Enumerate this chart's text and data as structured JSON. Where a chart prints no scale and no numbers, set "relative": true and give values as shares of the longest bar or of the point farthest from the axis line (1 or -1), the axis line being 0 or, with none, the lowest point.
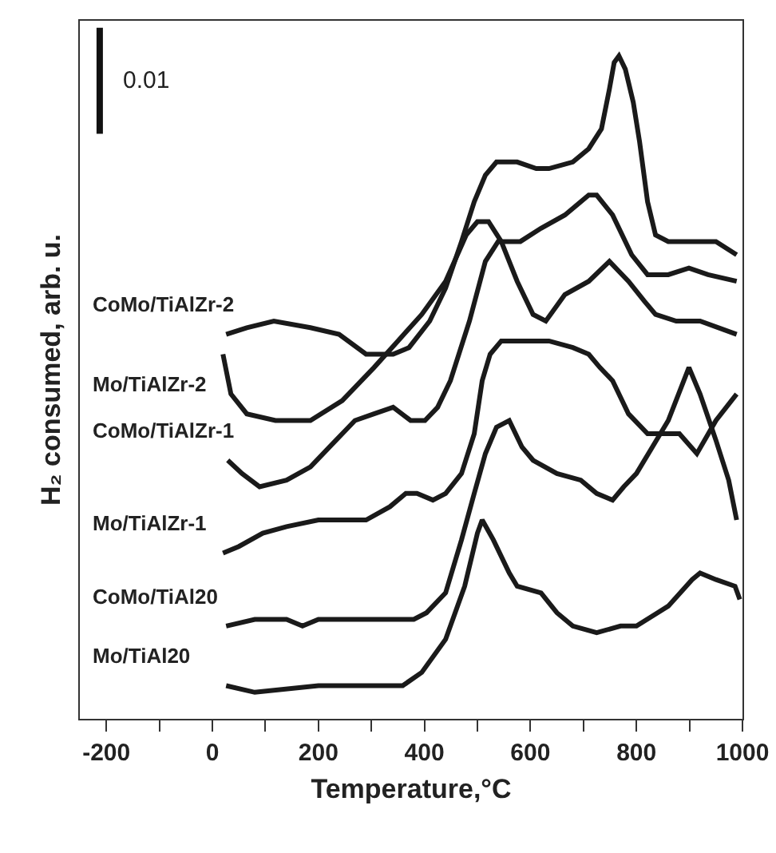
{
  "chart_data": {
    "type": "line",
    "relative": true,
    "xlabel": "Temperature,°C",
    "ylabel": "H₂ consumed, arb. u.",
    "xlim": [
      -250,
      1000
    ],
    "xticks": [
      -200,
      {
        "value": -100,
        "label": null
      },
      0,
      {
        "value": 100,
        "label": null
      },
      200,
      {
        "value": 300,
        "label": null
      },
      400,
      {
        "value": 500,
        "label": null
      },
      600,
      {
        "value": 700,
        "label": null
      },
      800,
      {
        "value": 900,
        "label": null
      },
      1000
    ],
    "annotations": [
      "0.01"
    ],
    "grid": false,
    "legend": false,
    "marker": "none",
    "line_style": "solid",
    "series": [
      {
        "name": "Mo/TiAl20",
        "color": "#1a1a1a",
        "x": [
          26,
          80,
          200,
          320,
          359,
          395,
          440,
          476,
          500,
          509,
          530,
          560,
          575,
          620,
          650,
          680,
          725,
          770,
          800,
          860,
          905,
          920,
          950,
          986,
          995
        ],
        "values": [
          0.05,
          0.04,
          0.05,
          0.05,
          0.05,
          0.07,
          0.12,
          0.2,
          0.28,
          0.3,
          0.27,
          0.22,
          0.2,
          0.19,
          0.16,
          0.14,
          0.13,
          0.14,
          0.14,
          0.17,
          0.21,
          0.22,
          0.21,
          0.2,
          0.18
        ]
      },
      {
        "name": "CoMo/TiAl20",
        "color": "#1a1a1a",
        "x": [
          26,
          80,
          140,
          170,
          200,
          290,
          380,
          404,
          440,
          470,
          494,
          515,
          536,
          560,
          584,
          605,
          650,
          695,
          725,
          755,
          776,
          800,
          830,
          860,
          899,
          920,
          950,
          974,
          989
        ],
        "values": [
          0.14,
          0.15,
          0.15,
          0.14,
          0.15,
          0.15,
          0.15,
          0.16,
          0.19,
          0.27,
          0.34,
          0.4,
          0.44,
          0.45,
          0.41,
          0.39,
          0.37,
          0.36,
          0.34,
          0.33,
          0.35,
          0.37,
          0.41,
          0.45,
          0.53,
          0.49,
          0.42,
          0.36,
          0.3
        ]
      },
      {
        "name": "Mo/TiAlZr-1",
        "color": "#1a1a1a",
        "x": [
          20,
          50,
          95,
          140,
          200,
          290,
          335,
          365,
          386,
          416,
          440,
          470,
          494,
          509,
          524,
          545,
          590,
          635,
          680,
          710,
          731,
          755,
          785,
          821,
          881,
          914,
          950,
          989
        ],
        "values": [
          0.25,
          0.26,
          0.28,
          0.29,
          0.3,
          0.3,
          0.32,
          0.34,
          0.34,
          0.33,
          0.34,
          0.37,
          0.43,
          0.51,
          0.55,
          0.57,
          0.57,
          0.57,
          0.56,
          0.55,
          0.53,
          0.51,
          0.46,
          0.43,
          0.43,
          0.4,
          0.45,
          0.49
        ]
      },
      {
        "name": "CoMo/TiAlZr-1",
        "color": "#1a1a1a",
        "x": [
          29,
          56,
          89,
          140,
          185,
          221,
          269,
          305,
          341,
          374,
          401,
          425,
          449,
          485,
          515,
          539,
          581,
          620,
          665,
          710,
          725,
          755,
          791,
          821,
          860,
          899,
          935,
          989
        ],
        "values": [
          0.39,
          0.37,
          0.35,
          0.36,
          0.38,
          0.41,
          0.45,
          0.46,
          0.47,
          0.45,
          0.45,
          0.47,
          0.51,
          0.6,
          0.69,
          0.72,
          0.72,
          0.74,
          0.76,
          0.79,
          0.79,
          0.76,
          0.7,
          0.67,
          0.67,
          0.68,
          0.67,
          0.66
        ]
      },
      {
        "name": "Mo/TiAlZr-2",
        "color": "#1a1a1a",
        "x": [
          20,
          35,
          65,
          119,
          185,
          245,
          305,
          350,
          395,
          440,
          479,
          500,
          521,
          545,
          575,
          605,
          629,
          665,
          710,
          749,
          785,
          815,
          836,
          875,
          920,
          989
        ],
        "values": [
          0.55,
          0.49,
          0.46,
          0.45,
          0.45,
          0.48,
          0.53,
          0.57,
          0.61,
          0.66,
          0.73,
          0.75,
          0.75,
          0.72,
          0.66,
          0.61,
          0.6,
          0.64,
          0.66,
          0.69,
          0.66,
          0.63,
          0.61,
          0.6,
          0.6,
          0.58
        ]
      },
      {
        "name": "CoMo/TiAlZr-2",
        "color": "#1a1a1a",
        "x": [
          26,
          65,
          116,
          185,
          239,
          290,
          341,
          371,
          410,
          440,
          470,
          494,
          515,
          536,
          575,
          611,
          635,
          680,
          710,
          734,
          749,
          758,
          767,
          779,
          794,
          806,
          821,
          836,
          860,
          905,
          950,
          989
        ],
        "values": [
          0.58,
          0.59,
          0.6,
          0.59,
          0.58,
          0.55,
          0.55,
          0.56,
          0.6,
          0.65,
          0.72,
          0.78,
          0.82,
          0.84,
          0.84,
          0.83,
          0.83,
          0.84,
          0.86,
          0.89,
          0.95,
          0.99,
          1,
          0.98,
          0.93,
          0.87,
          0.78,
          0.73,
          0.72,
          0.72,
          0.72,
          0.7
        ]
      }
    ]
  }
}
